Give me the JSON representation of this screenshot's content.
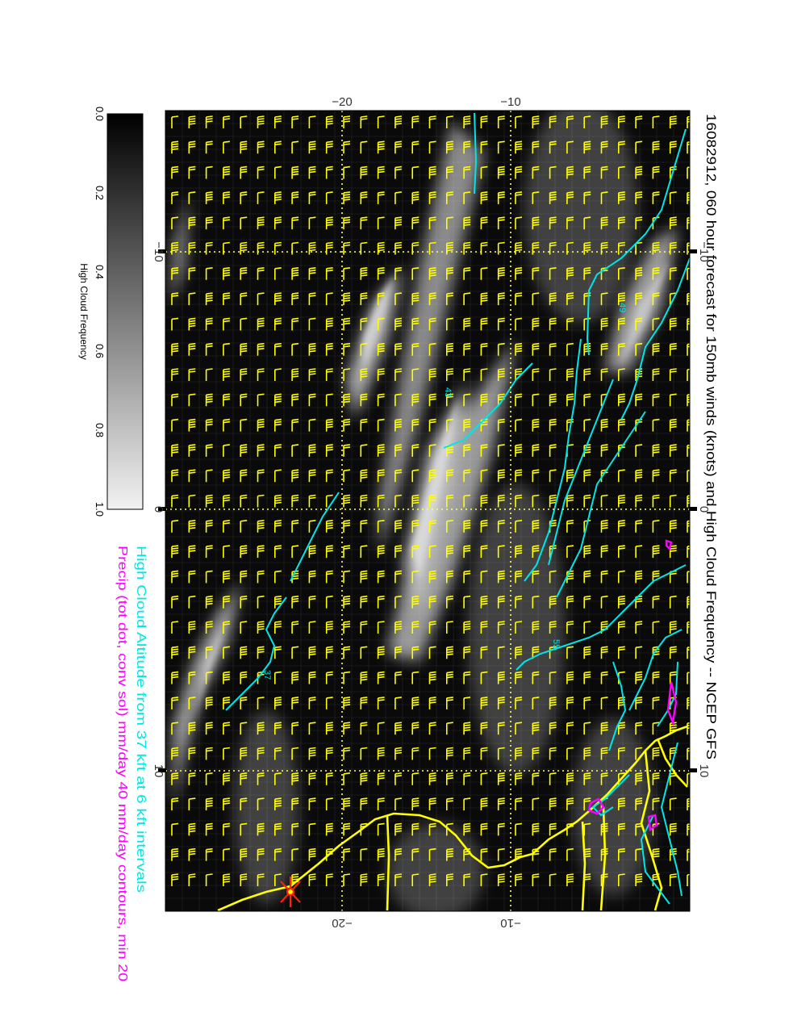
{
  "title": "16082912, 060 hour forecast for 150mb winds (knots) and High Cloud Frequency -- NCEP GFS",
  "legend_cyan": "High Cloud Altitude from 37 kft at 6 kft intervals",
  "legend_magenta": "Precip (tot dot, conv sol) mm/day 40 mm/day contours, min 20",
  "colorbar": {
    "label": "High Cloud Frequency",
    "ticks": [
      "0.0",
      "0.2",
      "0.4",
      "0.6",
      "0.8",
      "1.0"
    ]
  },
  "axes": {
    "top_ticks": [
      "−20",
      "−10"
    ],
    "bottom_ticks": [
      "−20",
      "−10"
    ],
    "inner_ticks": [
      "−10",
      "0",
      "10"
    ]
  },
  "contour_labels": [
    "37",
    "43",
    "49",
    "55"
  ],
  "colors": {
    "wind_barbs": "#ffff00",
    "coastline": "#ffff00",
    "cloud_altitude": "#00e5e5",
    "precip": "#ff00ff",
    "grid": "#ffff66",
    "storm_marker": "#ff2200"
  },
  "icons": {
    "storm": "hurricane-symbol-icon"
  }
}
